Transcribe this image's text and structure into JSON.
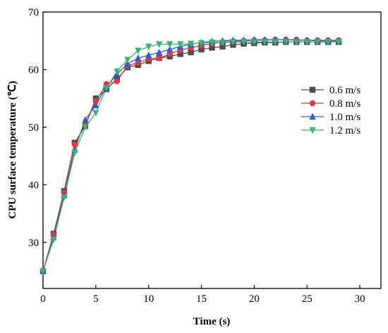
{
  "chart_data": {
    "type": "line",
    "xlabel": "Time (s)",
    "ylabel": "CPU surface temperature (℃)",
    "xlim": [
      0,
      32
    ],
    "ylim": [
      22,
      70
    ],
    "xticks": [
      0,
      5,
      10,
      15,
      20,
      25,
      30
    ],
    "yticks": [
      30,
      40,
      50,
      60,
      70
    ],
    "legend_position": "right",
    "x": [
      0,
      1,
      2,
      3,
      4,
      5,
      6,
      7,
      8,
      9,
      10,
      11,
      12,
      13,
      14,
      15,
      16,
      17,
      18,
      19,
      20,
      21,
      22,
      23,
      24,
      25,
      26,
      27,
      28
    ],
    "series": [
      {
        "name": "0.6 m/s",
        "color": "#4d4d4d",
        "marker": "square",
        "values": [
          25.0,
          31.5,
          38.9,
          47.3,
          50.2,
          55.0,
          56.6,
          58.3,
          60.4,
          60.8,
          61.5,
          62.0,
          62.3,
          62.7,
          63.0,
          63.5,
          63.8,
          64.0,
          64.3,
          64.5,
          64.6,
          64.7,
          64.7,
          64.8,
          64.8,
          64.8,
          64.8,
          64.8,
          64.8
        ]
      },
      {
        "name": "0.8 m/s",
        "color": "#e8363a",
        "marker": "circle",
        "values": [
          25.0,
          31.3,
          38.6,
          47.0,
          50.5,
          54.5,
          57.5,
          58.0,
          60.7,
          61.2,
          61.9,
          62.0,
          62.7,
          63.4,
          63.8,
          64.2,
          64.5,
          64.8,
          64.9,
          65.0,
          65.1,
          65.1,
          65.2,
          65.2,
          65.2,
          65.1,
          65.1,
          65.1,
          65.1
        ]
      },
      {
        "name": "1.0 m/s",
        "color": "#2a5fdc",
        "marker": "triangle-up",
        "values": [
          25.0,
          30.9,
          38.2,
          46.1,
          51.3,
          53.8,
          57.0,
          59.2,
          61.0,
          62.0,
          62.5,
          63.0,
          63.5,
          64.0,
          64.4,
          64.7,
          64.9,
          65.0,
          65.1,
          65.1,
          65.2,
          65.2,
          65.2,
          65.2,
          65.1,
          65.1,
          65.0,
          65.0,
          65.0
        ]
      },
      {
        "name": "1.2 m/s",
        "color": "#3ab56a",
        "marker": "triangle-down",
        "values": [
          25.0,
          30.5,
          37.8,
          45.6,
          50.0,
          52.5,
          56.8,
          59.7,
          61.7,
          63.3,
          64.0,
          64.4,
          64.4,
          64.4,
          64.5,
          64.6,
          64.7,
          64.7,
          64.8,
          64.8,
          64.8,
          64.8,
          64.8,
          64.8,
          64.8,
          64.8,
          64.8,
          64.8,
          64.8
        ]
      }
    ]
  }
}
